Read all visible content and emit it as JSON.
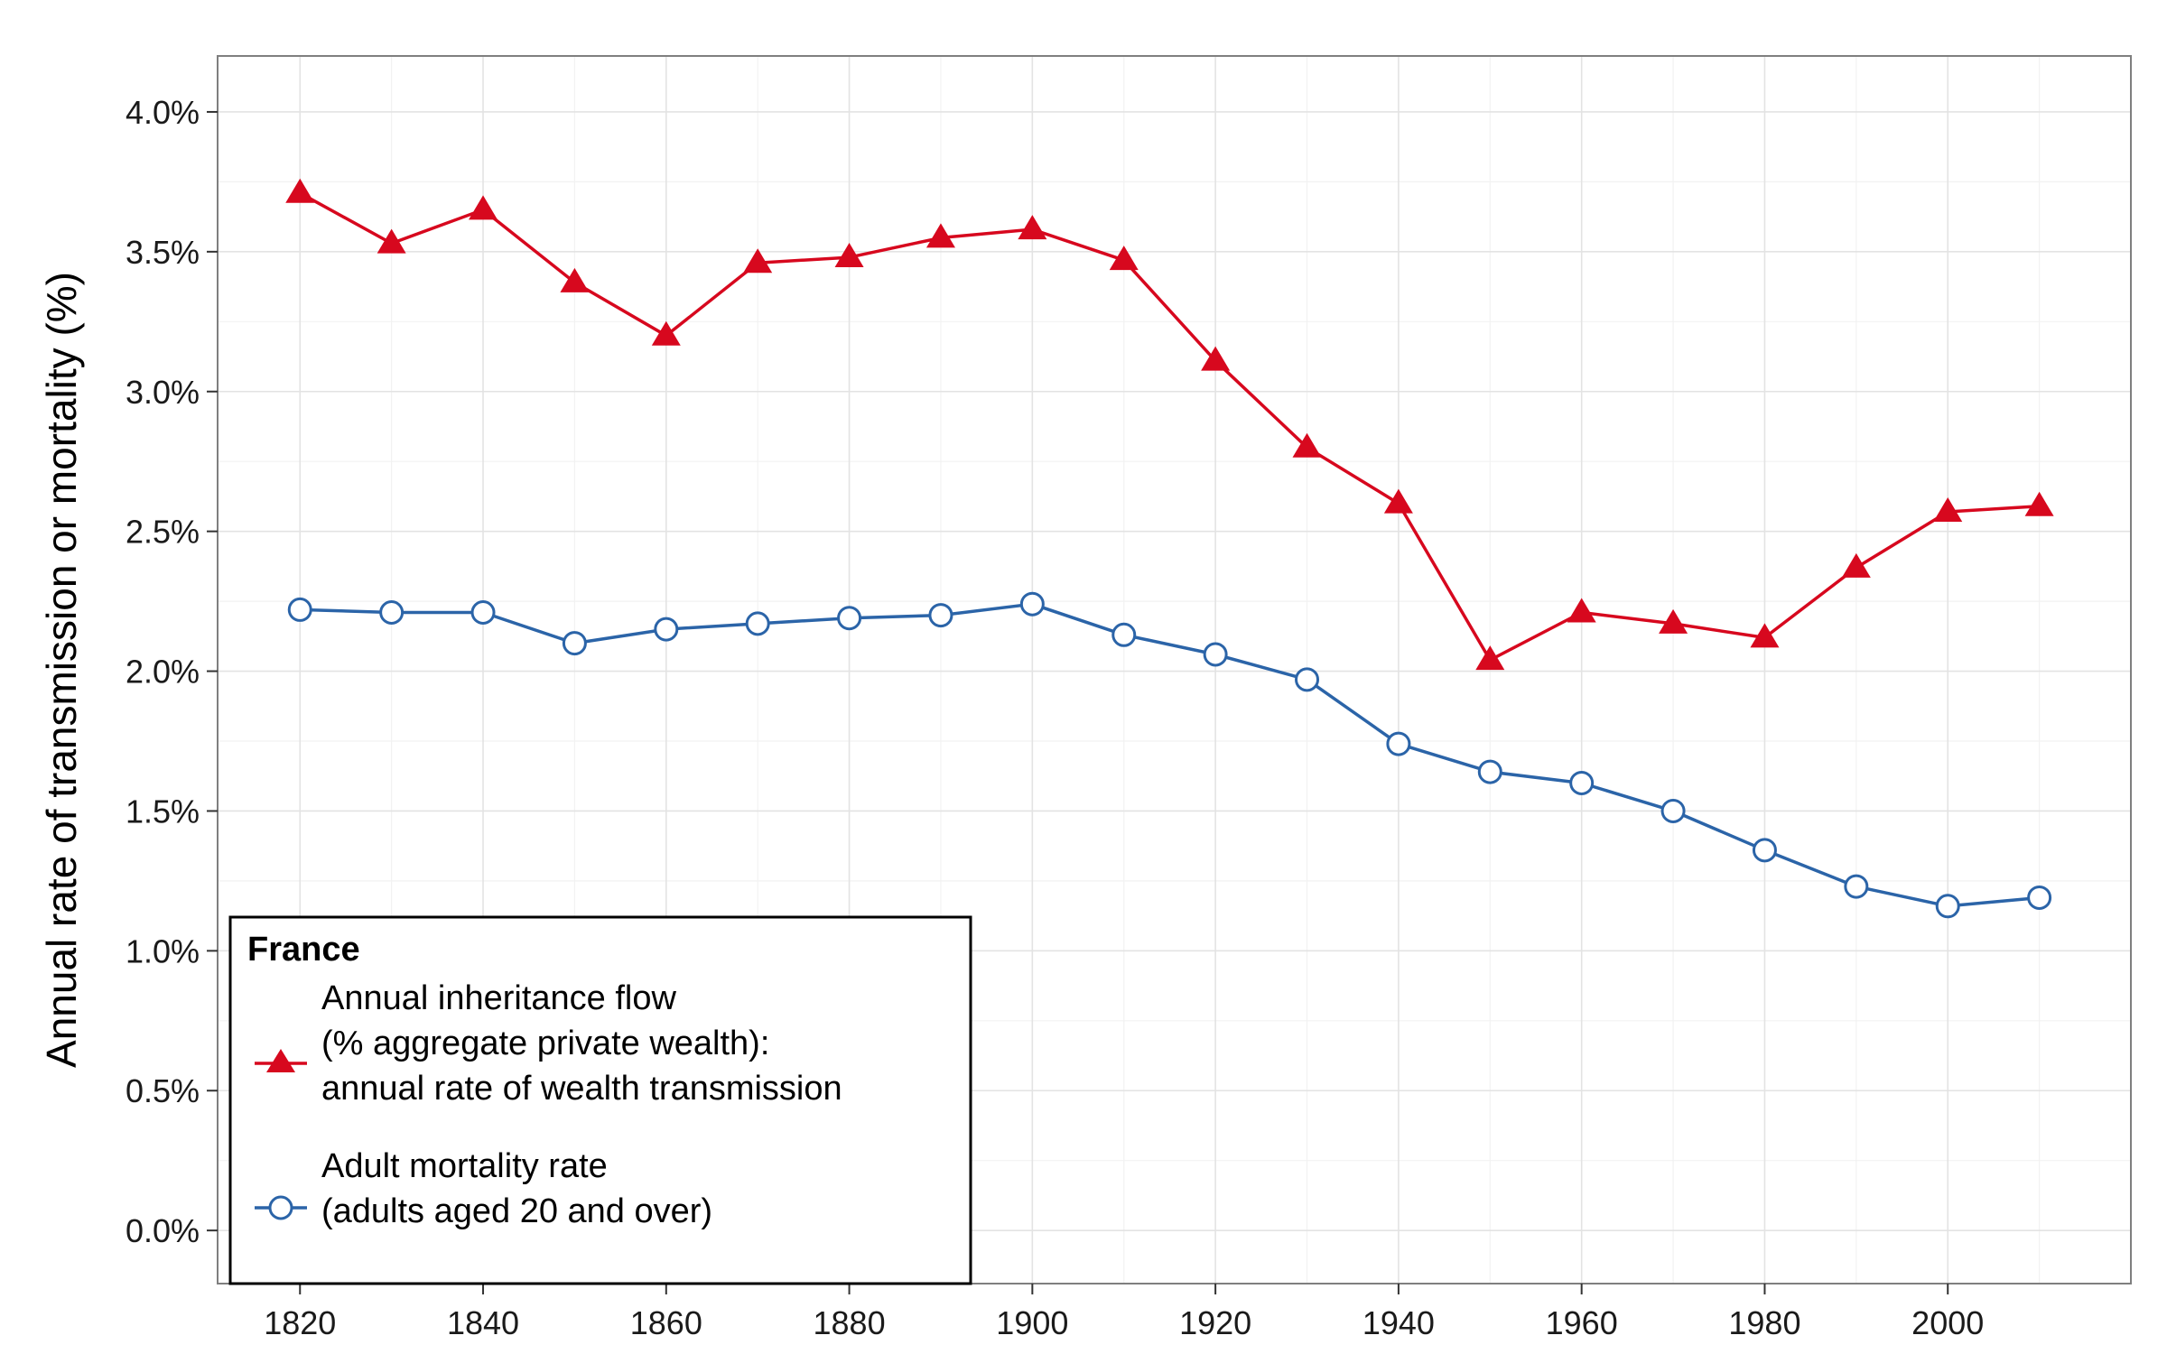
{
  "chart_data": {
    "type": "line",
    "ylabel": "Annual rate of transmission or mortality (%)",
    "xlabel": "",
    "x": [
      1820,
      1830,
      1840,
      1850,
      1860,
      1870,
      1880,
      1890,
      1900,
      1910,
      1920,
      1930,
      1940,
      1950,
      1960,
      1970,
      1980,
      1990,
      2000,
      2010
    ],
    "xlim": [
      1811,
      2020
    ],
    "ylim": [
      -0.19,
      4.2
    ],
    "x_ticks": [
      1820,
      1840,
      1860,
      1880,
      1900,
      1920,
      1940,
      1960,
      1980,
      2000
    ],
    "x_tick_labels": [
      "1820",
      "1840",
      "1860",
      "1880",
      "1900",
      "1920",
      "1940",
      "1960",
      "1980",
      "2000"
    ],
    "y_ticks": [
      0,
      0.5,
      1,
      1.5,
      2,
      2.5,
      3,
      3.5,
      4
    ],
    "y_tick_labels": [
      "0.0%",
      "0.5%",
      "1.0%",
      "1.5%",
      "2.0%",
      "2.5%",
      "3.0%",
      "3.5%",
      "4.0%"
    ],
    "grid": true,
    "legend": {
      "title": "France",
      "placement": "bottom-left",
      "entries": [
        {
          "lines": [
            "Annual inheritance flow",
            "(% aggregate private wealth):",
            "annual rate of wealth transmission"
          ],
          "marker": "triangle"
        },
        {
          "lines": [
            "Adult mortality rate",
            "(adults aged 20 and over)"
          ],
          "marker": "open-circle"
        }
      ]
    },
    "series": [
      {
        "marker": "triangle",
        "color": "#d7081e",
        "values": [
          3.71,
          3.53,
          3.65,
          3.39,
          3.2,
          3.46,
          3.48,
          3.55,
          3.58,
          3.47,
          3.11,
          2.8,
          2.6,
          2.04,
          2.21,
          2.17,
          2.12,
          2.37,
          2.57,
          2.59
        ]
      },
      {
        "marker": "open-circle",
        "color": "#2b64a8",
        "values": [
          2.22,
          2.21,
          2.21,
          2.1,
          2.15,
          2.17,
          2.19,
          2.2,
          2.24,
          2.13,
          2.06,
          1.97,
          1.74,
          1.64,
          1.6,
          1.5,
          1.36,
          1.23,
          1.16,
          1.19
        ]
      }
    ]
  }
}
